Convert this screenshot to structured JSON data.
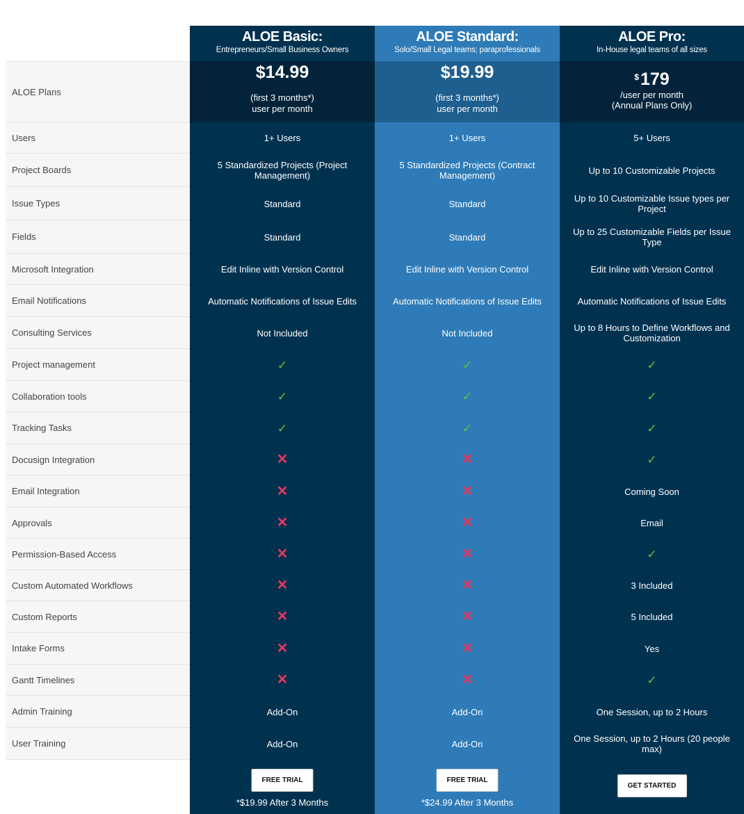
{
  "left": {
    "plans_label": "ALOE Plans",
    "features": [
      "Users",
      "Project Boards",
      "Issue Types",
      "Fields",
      "Microsoft Integration",
      "Email Notifications",
      "Consulting Services",
      "Project management",
      "Collaboration tools",
      "Tracking Tasks",
      "Docusign Integration",
      "Email Integration",
      "Approvals",
      "Permission-Based Access",
      "Custom Automated Workflows",
      "Custom Reports",
      "Intake Forms",
      "Gantt Timelines",
      "Admin Training",
      "User Training"
    ]
  },
  "symbols": {
    "check": "✓",
    "cross": "✕"
  },
  "colors": {
    "dark": "#003250",
    "accent": "#2e7bb7",
    "check": "#6ebf2f",
    "cross": "#e8365e"
  },
  "plans": {
    "basic": {
      "name": "ALOE Basic:",
      "subtitle": "Entrepreneurs/Small Business Owners",
      "price": "$14.99",
      "note1": "(first 3 months*)",
      "note2": "user per month",
      "cells": [
        "1+ Users",
        "5 Standardized Projects (Project Management)",
        "Standard",
        "Standard",
        "Edit Inline with Version Control",
        "Automatic Notifications of Issue Edits",
        "Not Included",
        "check",
        "check",
        "check",
        "cross",
        "cross",
        "cross",
        "cross",
        "cross",
        "cross",
        "cross",
        "cross",
        "Add-On",
        "Add-On"
      ],
      "cta": "FREE TRIAL",
      "footnote": "*$19.99 After 3 Months"
    },
    "standard": {
      "name": "ALOE Standard:",
      "subtitle": "Solo/Small Legal teams; paraprofessionals",
      "price": "$19.99",
      "note1": "(first 3 months*)",
      "note2": "user per month",
      "cells": [
        "1+ Users",
        "5 Standardized Projects (Contract Management)",
        "Standard",
        "Standard",
        "Edit Inline with Version Control",
        "Automatic Notifications of Issue Edits",
        "Not Included",
        "check",
        "check",
        "check",
        "cross",
        "cross",
        "cross",
        "cross",
        "cross",
        "cross",
        "cross",
        "cross",
        "Add-On",
        "Add-On"
      ],
      "cta": "FREE TRIAL",
      "footnote": "*$24.99 After 3 Months"
    },
    "pro": {
      "name": "ALOE Pro:",
      "subtitle": "In-House legal teams of all sizes",
      "currency": "$",
      "price": "179",
      "note1": "/user per month",
      "note2": "(Annual Plans Only)",
      "cells": [
        "5+ Users",
        "Up to 10 Customizable Projects",
        "Up to 10 Customizable Issue types per Project",
        "Up to 25 Customizable Fields per Issue Type",
        "Edit Inline with Version Control",
        "Automatic Notifications of Issue Edits",
        "Up to 8 Hours to Define Workflows and Customization",
        "check",
        "check",
        "check",
        "check",
        "Coming Soon",
        "Email",
        "check",
        "3 Included",
        "5 Included",
        "Yes",
        "check",
        "One Session, up to 2 Hours",
        "One Session, up to 2 Hours (20 people max)"
      ],
      "cta": "GET STARTED"
    }
  }
}
